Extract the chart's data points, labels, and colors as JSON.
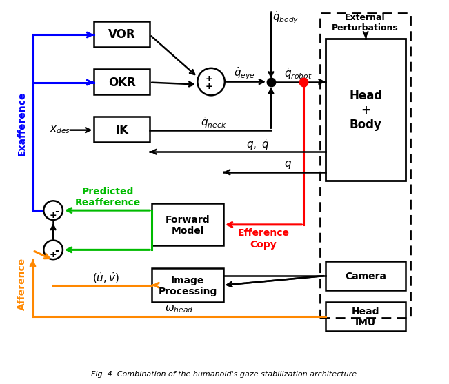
{
  "title": "Fig. 4. Combination of the humanoid's gaze stabilization architecture.",
  "bg_color": "#ffffff",
  "blue_color": "#0000ff",
  "green_color": "#00bb00",
  "orange_color": "#ff8800",
  "red_color": "#ff0000",
  "black_color": "#000000",
  "figsize": [
    6.4,
    5.54
  ],
  "dpi": 100
}
